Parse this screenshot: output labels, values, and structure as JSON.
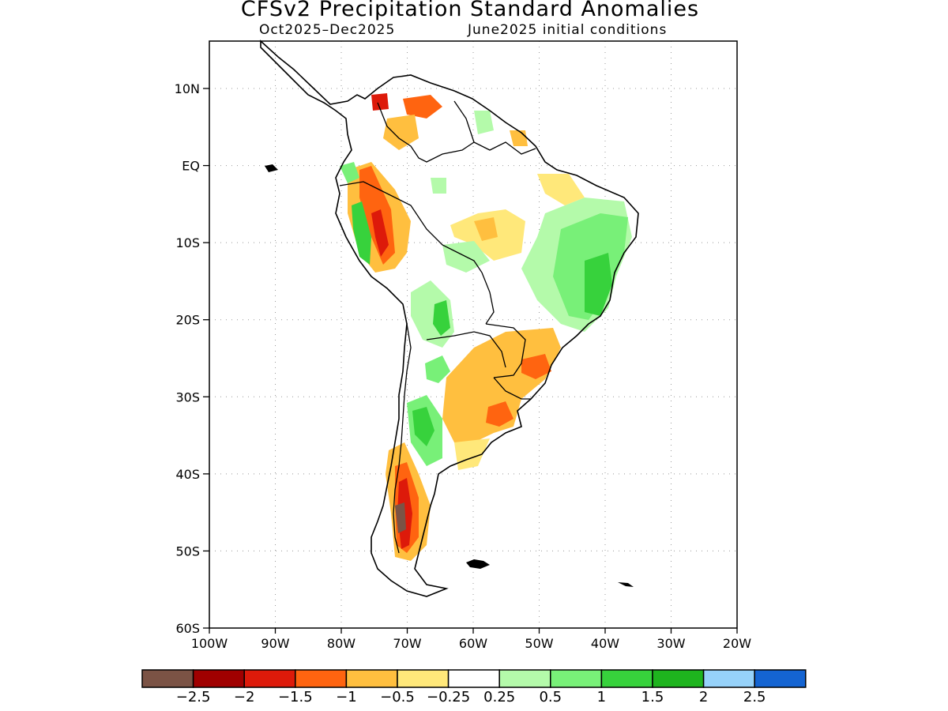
{
  "title": "CFSv2 Precipitation Standard Anomalies",
  "subtitle_period": "Oct2025–Dec2025",
  "subtitle_init": "June2025 initial conditions",
  "lat_labels": [
    "10N",
    "EQ",
    "10S",
    "20S",
    "30S",
    "40S",
    "50S",
    "60S"
  ],
  "lon_labels": [
    "100W",
    "90W",
    "80W",
    "70W",
    "60W",
    "50W",
    "40W",
    "30W",
    "20W"
  ],
  "colorbar": {
    "colors": [
      "#7b5345",
      "#a00000",
      "#dd1a0a",
      "#ff6410",
      "#ffbf3f",
      "#ffe87a",
      "#ffffff",
      "#b4faaa",
      "#78f078",
      "#37d23c",
      "#1eb41e",
      "#96d2fa",
      "#1464d2"
    ],
    "labels": [
      "−2.5",
      "−2",
      "−1.5",
      "−1",
      "−0.5",
      "−0.25",
      "0.25",
      "0.5",
      "1",
      "1.5",
      "2",
      "2.5"
    ]
  },
  "legend_colors": {
    "dry_strong": "#a00000",
    "dry": "#ff6410",
    "dry_weak": "#ffbf3f",
    "wet_weak": "#b4faaa",
    "wet": "#78f078",
    "wet_strong": "#37d23c"
  }
}
